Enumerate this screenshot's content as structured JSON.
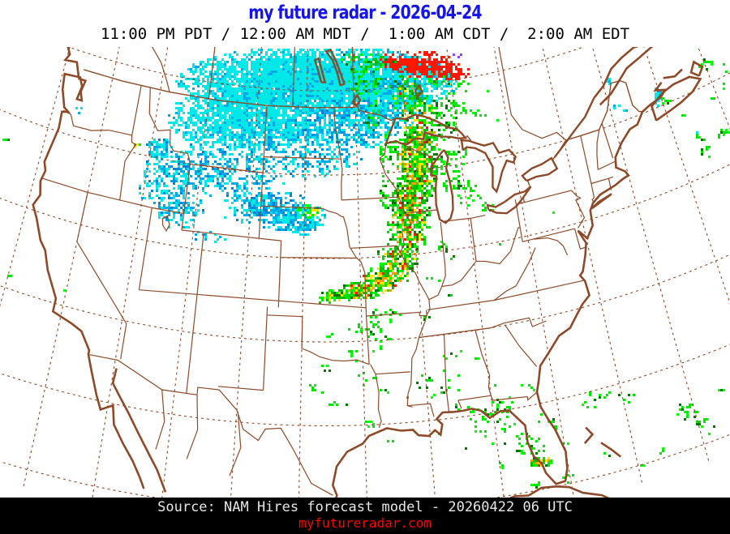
{
  "header": {
    "title": "my future radar - 2026-04-24",
    "times": "11:00 PM PDT / 12:00 AM MDT /  1:00 AM CDT /  2:00 AM EDT"
  },
  "footer": {
    "source": "Source: NAM Hires forecast model - 20260422 06 UTC",
    "website": "myfutureradar.com"
  },
  "colors": {
    "title": "#1414ee",
    "subtitle": "#000000",
    "map_line": "#8e4a28",
    "background": "#ffffff",
    "footer_bg": "#000000",
    "footer_text": "#e8e8e8",
    "link": "#ff0000",
    "radar_scale": [
      "#00e8e8",
      "#00aae8",
      "#0084d8",
      "#00c000",
      "#00e800",
      "#00ff00",
      "#007800",
      "#ffe400",
      "#ff9800",
      "#ff1800",
      "#8c46ff"
    ]
  },
  "radar": {
    "cell": 3,
    "blobs": [
      [
        390,
        100,
        175,
        45,
        0.97,
        0,
        0
      ],
      [
        300,
        145,
        95,
        40,
        0.85,
        0,
        0
      ],
      [
        430,
        150,
        70,
        35,
        0.6,
        1,
        0
      ],
      [
        360,
        185,
        90,
        35,
        0.4,
        1,
        0
      ],
      [
        480,
        120,
        45,
        40,
        0.5,
        1,
        0
      ],
      [
        295,
        225,
        55,
        22,
        0.35,
        1,
        0
      ],
      [
        340,
        250,
        40,
        15,
        0.4,
        1,
        0
      ],
      [
        250,
        205,
        40,
        30,
        0.45,
        1,
        0
      ],
      [
        205,
        220,
        40,
        35,
        0.5,
        1,
        0
      ],
      [
        222,
        260,
        30,
        25,
        0.45,
        1,
        0
      ],
      [
        195,
        182,
        18,
        14,
        0.5,
        1,
        0
      ],
      [
        258,
        293,
        20,
        10,
        0.35,
        1,
        0
      ],
      [
        310,
        262,
        40,
        14,
        0.35,
        1,
        0
      ],
      [
        315,
        250,
        35,
        16,
        0.6,
        1,
        0
      ],
      [
        357,
        268,
        46,
        18,
        0.8,
        1,
        0
      ],
      [
        378,
        260,
        16,
        10,
        0.7,
        6,
        0
      ],
      [
        370,
        280,
        25,
        10,
        0.5,
        1,
        0
      ],
      [
        97,
        133,
        7,
        5,
        0.5,
        0,
        0
      ],
      [
        190,
        178,
        11,
        8,
        0.5,
        0,
        0
      ],
      [
        167,
        177,
        5,
        4,
        0.9,
        6,
        0
      ],
      [
        520,
        78,
        42,
        18,
        0.92,
        4,
        0
      ],
      [
        488,
        73,
        22,
        10,
        0.75,
        4,
        0
      ],
      [
        552,
        88,
        25,
        12,
        0.8,
        4,
        0
      ],
      [
        563,
        68,
        7,
        4,
        0.5,
        5,
        0
      ],
      [
        447,
        92,
        22,
        30,
        0.4,
        2,
        0
      ],
      [
        470,
        73,
        18,
        10,
        0.35,
        2,
        0
      ],
      [
        500,
        115,
        22,
        28,
        0.5,
        2,
        1
      ],
      [
        518,
        155,
        26,
        40,
        0.6,
        2,
        1
      ],
      [
        512,
        205,
        26,
        50,
        0.8,
        2,
        1
      ],
      [
        502,
        268,
        28,
        48,
        0.8,
        2,
        1
      ],
      [
        488,
        322,
        26,
        28,
        0.75,
        2,
        1
      ],
      [
        468,
        345,
        24,
        18,
        0.75,
        2,
        1
      ],
      [
        442,
        357,
        28,
        13,
        0.85,
        2,
        1
      ],
      [
        414,
        364,
        22,
        9,
        0.8,
        2,
        1
      ],
      [
        398,
        368,
        10,
        6,
        0.6,
        2,
        0
      ],
      [
        548,
        190,
        28,
        55,
        0.25,
        3,
        0
      ],
      [
        552,
        132,
        22,
        22,
        0.3,
        3,
        0
      ],
      [
        585,
        140,
        13,
        10,
        0.3,
        3,
        0
      ],
      [
        610,
        143,
        8,
        6,
        0.3,
        3,
        0
      ],
      [
        575,
        240,
        18,
        18,
        0.2,
        3,
        0
      ],
      [
        600,
        255,
        10,
        8,
        0.2,
        3,
        0
      ],
      [
        545,
        300,
        12,
        10,
        0.22,
        3,
        0
      ],
      [
        558,
        318,
        8,
        6,
        0.2,
        3,
        0
      ],
      [
        532,
        345,
        10,
        7,
        0.25,
        3,
        0
      ],
      [
        555,
        360,
        7,
        5,
        0.2,
        3,
        0
      ],
      [
        525,
        388,
        8,
        5,
        0.25,
        3,
        0
      ],
      [
        560,
        433,
        8,
        5,
        0.3,
        3,
        0
      ],
      [
        545,
        438,
        6,
        4,
        0.25,
        3,
        0
      ],
      [
        470,
        388,
        25,
        10,
        0.25,
        3,
        0
      ],
      [
        448,
        405,
        22,
        10,
        0.22,
        3,
        0
      ],
      [
        468,
        420,
        15,
        8,
        0.2,
        3,
        0
      ],
      [
        432,
        438,
        18,
        10,
        0.22,
        3,
        0
      ],
      [
        452,
        468,
        12,
        7,
        0.2,
        3,
        0
      ],
      [
        410,
        415,
        10,
        6,
        0.25,
        3,
        0
      ],
      [
        400,
        455,
        10,
        7,
        0.25,
        3,
        0
      ],
      [
        390,
        480,
        12,
        8,
        0.25,
        3,
        0
      ],
      [
        408,
        495,
        10,
        6,
        0.2,
        3,
        0
      ],
      [
        540,
        95,
        15,
        12,
        0.3,
        3,
        0
      ],
      [
        570,
        105,
        10,
        8,
        0.25,
        3,
        0
      ],
      [
        600,
        115,
        8,
        6,
        0.2,
        3,
        0
      ],
      [
        427,
        72,
        12,
        8,
        0.35,
        3,
        0
      ],
      [
        455,
        140,
        12,
        20,
        0.3,
        3,
        0
      ],
      [
        480,
        185,
        15,
        25,
        0.3,
        3,
        0
      ],
      [
        478,
        240,
        15,
        30,
        0.3,
        3,
        0
      ],
      [
        750,
        97,
        6,
        5,
        0.7,
        0,
        0
      ],
      [
        808,
        117,
        7,
        13,
        0.75,
        0,
        0
      ],
      [
        820,
        120,
        7,
        9,
        0.6,
        3,
        0
      ],
      [
        757,
        131,
        5,
        4,
        0.5,
        0,
        0
      ],
      [
        770,
        134,
        5,
        3,
        0.4,
        0,
        0
      ],
      [
        862,
        167,
        9,
        6,
        0.5,
        3,
        0
      ],
      [
        868,
        185,
        7,
        9,
        0.45,
        3,
        0
      ],
      [
        858,
        163,
        4,
        3,
        0.6,
        0,
        0
      ],
      [
        845,
        142,
        4,
        3,
        0.4,
        3,
        0
      ],
      [
        888,
        163,
        10,
        9,
        0.5,
        3,
        0
      ],
      [
        878,
        120,
        5,
        7,
        0.35,
        3,
        0
      ],
      [
        893,
        105,
        5,
        5,
        0.3,
        3,
        0
      ],
      [
        870,
        78,
        12,
        9,
        0.4,
        3,
        0
      ],
      [
        893,
        85,
        6,
        9,
        0.4,
        3,
        0
      ],
      [
        543,
        470,
        38,
        20,
        0.12,
        3,
        0
      ],
      [
        610,
        520,
        33,
        28,
        0.14,
        3,
        0
      ],
      [
        652,
        545,
        22,
        18,
        0.2,
        3,
        0
      ],
      [
        663,
        567,
        16,
        7,
        0.9,
        2,
        1
      ],
      [
        698,
        588,
        13,
        9,
        0.22,
        3,
        0
      ],
      [
        622,
        497,
        18,
        11,
        0.18,
        3,
        0
      ],
      [
        587,
        505,
        14,
        9,
        0.15,
        3,
        0
      ],
      [
        650,
        477,
        14,
        8,
        0.12,
        3,
        0
      ],
      [
        680,
        520,
        11,
        8,
        0.15,
        3,
        0
      ],
      [
        732,
        490,
        28,
        11,
        0.12,
        3,
        0
      ],
      [
        770,
        488,
        22,
        8,
        0.1,
        3,
        0
      ],
      [
        845,
        507,
        16,
        11,
        0.4,
        3,
        0
      ],
      [
        862,
        517,
        11,
        8,
        0.3,
        3,
        0
      ],
      [
        880,
        531,
        9,
        6,
        0.25,
        3,
        0
      ],
      [
        888,
        481,
        8,
        5,
        0.2,
        3,
        0
      ],
      [
        820,
        556,
        11,
        6,
        0.2,
        3,
        0
      ],
      [
        790,
        571,
        9,
        5,
        0.2,
        3,
        0
      ],
      [
        745,
        556,
        8,
        5,
        0.2,
        3,
        0
      ],
      [
        702,
        546,
        9,
        6,
        0.2,
        3,
        0
      ],
      [
        666,
        516,
        9,
        7,
        0.25,
        3,
        0
      ],
      [
        640,
        556,
        8,
        5,
        0.3,
        3,
        0
      ],
      [
        620,
        571,
        9,
        5,
        0.25,
        3,
        0
      ],
      [
        583,
        481,
        11,
        6,
        0.15,
        3,
        0
      ],
      [
        560,
        500,
        9,
        5,
        0.12,
        3,
        0
      ],
      [
        520,
        506,
        8,
        5,
        0.1,
        3,
        0
      ],
      [
        495,
        491,
        7,
        4,
        0.1,
        3,
        0
      ],
      [
        540,
        531,
        8,
        4,
        0.12,
        3,
        0
      ],
      [
        572,
        551,
        8,
        4,
        0.1,
        3,
        0
      ],
      [
        607,
        470,
        10,
        6,
        0.15,
        3,
        0
      ],
      [
        660,
        598,
        10,
        6,
        0.2,
        3,
        0
      ],
      [
        730,
        595,
        8,
        5,
        0.18,
        3,
        0
      ],
      [
        462,
        431,
        8,
        5,
        0.15,
        3,
        0
      ],
      [
        440,
        461,
        9,
        6,
        0.12,
        3,
        0
      ],
      [
        470,
        481,
        8,
        5,
        0.1,
        3,
        0
      ],
      [
        427,
        501,
        8,
        5,
        0.12,
        3,
        0
      ],
      [
        456,
        521,
        8,
        5,
        0.1,
        3,
        0
      ],
      [
        476,
        546,
        9,
        5,
        0.15,
        3,
        0
      ],
      [
        462,
        576,
        8,
        4,
        0.12,
        3,
        0
      ],
      [
        487,
        561,
        6,
        4,
        0.1,
        3,
        0
      ],
      [
        500,
        441,
        7,
        4,
        0.12,
        3,
        0
      ],
      [
        12,
        339,
        5,
        3,
        0.5,
        3,
        0
      ],
      [
        7,
        172,
        4,
        3,
        0.4,
        3,
        0
      ],
      [
        80,
        357,
        4,
        3,
        0.3,
        3,
        0
      ],
      [
        640,
        232,
        5,
        4,
        0.2,
        3,
        0
      ],
      [
        625,
        172,
        5,
        4,
        0.2,
        3,
        0
      ],
      [
        615,
        300,
        5,
        3,
        0.2,
        3,
        0
      ],
      [
        680,
        260,
        4,
        3,
        0.2,
        3,
        0
      ],
      [
        700,
        310,
        4,
        3,
        0.18,
        3,
        0
      ],
      [
        590,
        442,
        7,
        4,
        0.25,
        3,
        0
      ]
    ]
  }
}
